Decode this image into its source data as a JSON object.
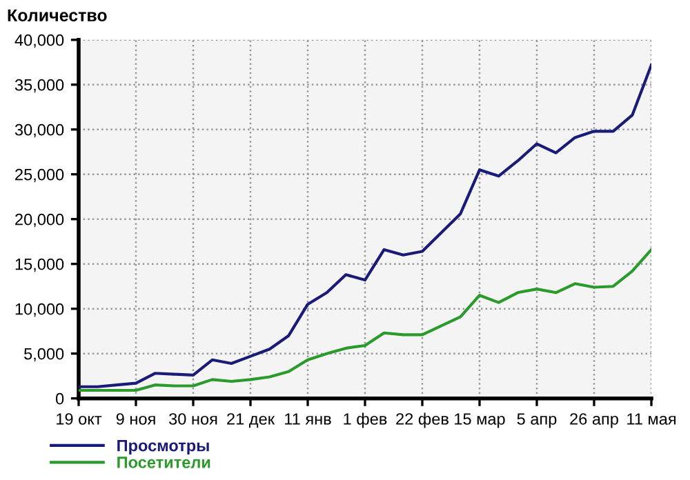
{
  "chart_data": {
    "type": "line",
    "title": "Количество",
    "categories": [
      "19 окт",
      null,
      null,
      "9 ноя",
      null,
      null,
      "30 ноя",
      null,
      null,
      "21 дек",
      null,
      null,
      "11 янв",
      null,
      null,
      "1 фев",
      null,
      null,
      "22 фев",
      null,
      null,
      "15 мар",
      null,
      null,
      "5 апр",
      null,
      null,
      "26 апр",
      null,
      null,
      "11 мая"
    ],
    "series": [
      {
        "name": "Просмотры",
        "color": "#1a1a78",
        "values": [
          1300,
          1300,
          1500,
          1700,
          2800,
          2700,
          2600,
          4300,
          3900,
          4700,
          5500,
          7000,
          10500,
          11800,
          13800,
          13200,
          16600,
          16000,
          16400,
          18500,
          20600,
          25500,
          24800,
          26500,
          28400,
          27400,
          29100,
          29800,
          29800,
          31600,
          37200
        ]
      },
      {
        "name": "Посетители",
        "color": "#2a9a2a",
        "values": [
          900,
          900,
          900,
          900,
          1500,
          1400,
          1400,
          2100,
          1900,
          2100,
          2400,
          3000,
          4300,
          5000,
          5600,
          5900,
          7300,
          7100,
          7100,
          8100,
          9100,
          11500,
          10700,
          11800,
          12200,
          11800,
          12800,
          12400,
          12500,
          14200,
          16600
        ]
      }
    ],
    "ylim": [
      0,
      40000
    ],
    "yticks": [
      0,
      {
        "value": 5000,
        "label": "5,000"
      },
      {
        "value": 10000,
        "label": "10,000"
      },
      {
        "value": 15000,
        "label": "15,000"
      },
      {
        "value": 20000,
        "label": "20,000"
      },
      {
        "value": 25000,
        "label": "25,000"
      },
      {
        "value": 30000,
        "label": "30,000"
      },
      {
        "value": 35000,
        "label": "35,000"
      },
      {
        "value": 40000,
        "label": "40,000"
      }
    ],
    "grid": true,
    "legend": "bottom left",
    "marker": "none",
    "line_style": "solid"
  }
}
